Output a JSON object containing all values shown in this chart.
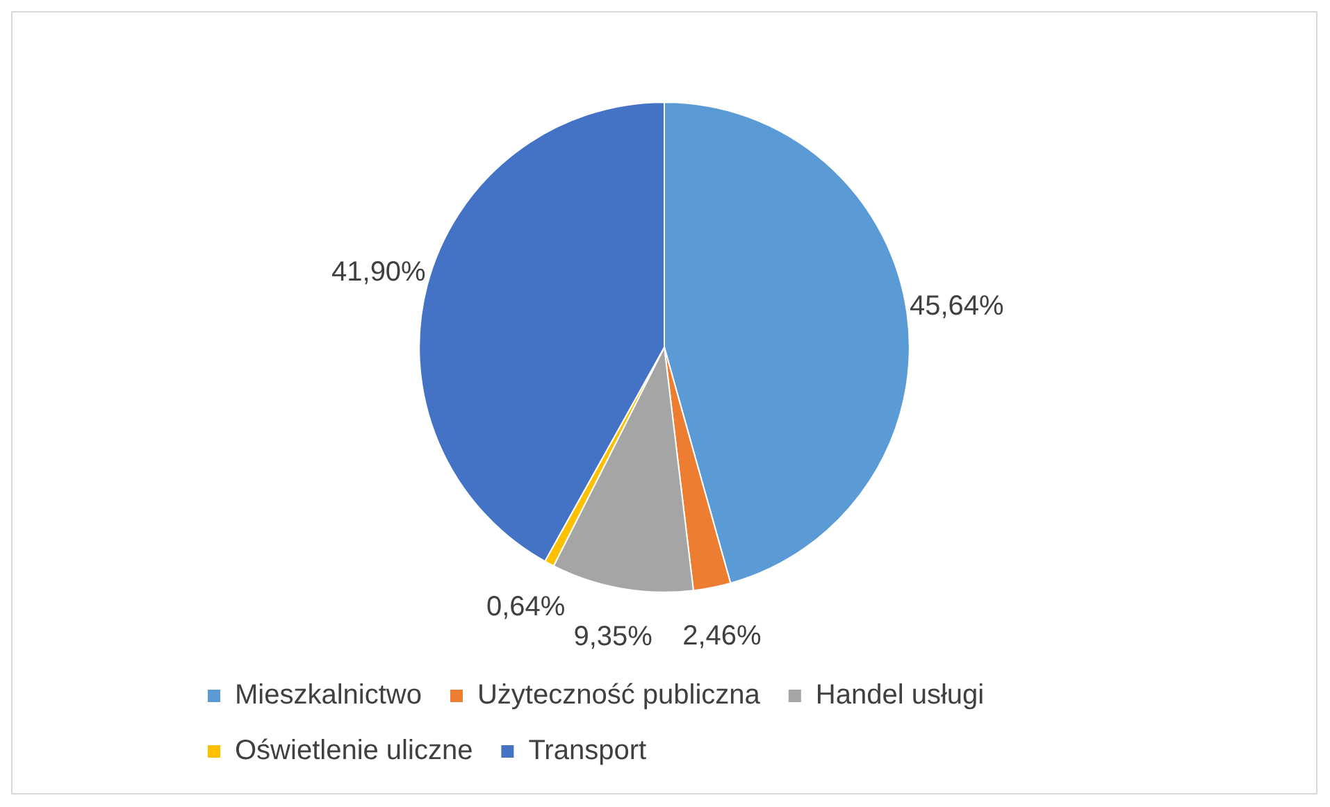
{
  "chart_data": {
    "type": "pie",
    "categories": [
      "Mieszkalnictwo",
      "Użyteczność publiczna",
      "Handel usługi",
      "Oświetlenie uliczne",
      "Transport"
    ],
    "values": [
      45.64,
      2.46,
      9.35,
      0.64,
      41.9
    ],
    "value_labels": [
      "45,64%",
      "2,46%",
      "9,35%",
      "0,64%",
      "41,90%"
    ],
    "colors": [
      "#5b9bd5",
      "#ed7d31",
      "#a5a5a5",
      "#ffc000",
      "#4472c4"
    ],
    "legend": "bottom"
  }
}
